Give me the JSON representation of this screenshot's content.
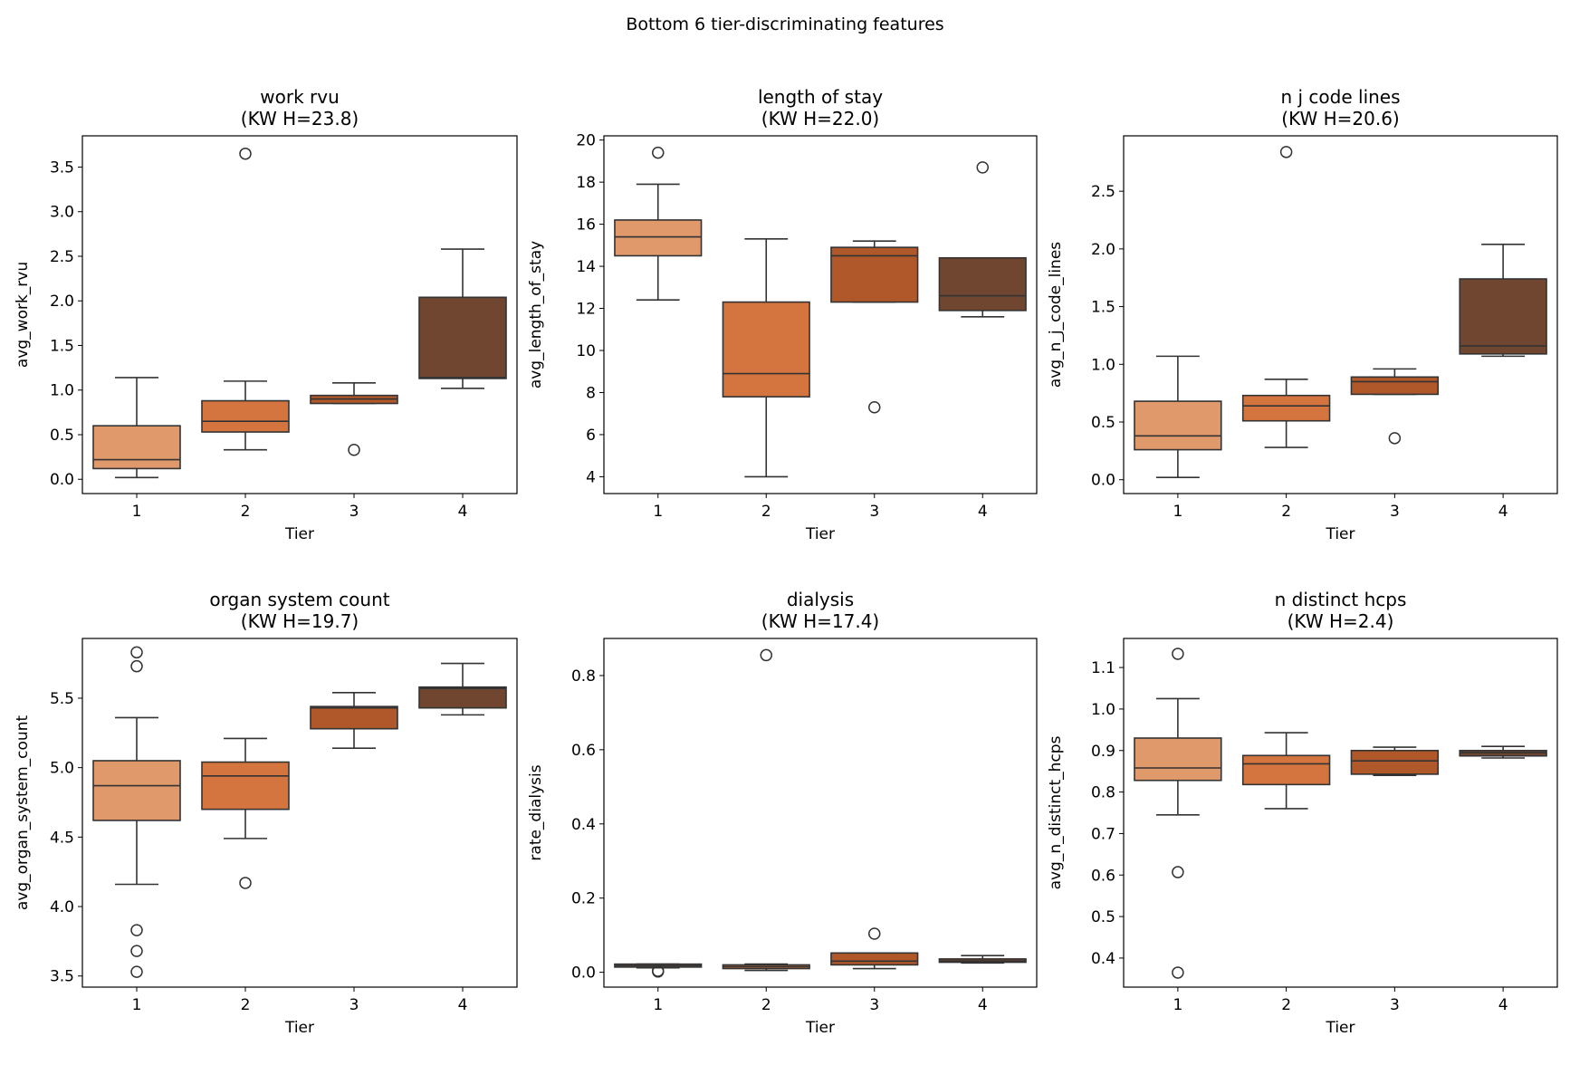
{
  "chart_data": {
    "title": "Bottom 6 tier-discriminating features",
    "colors": [
      "#e0996a",
      "#d4743e",
      "#b0582a",
      "#714630"
    ],
    "panels": [
      {
        "type": "box",
        "title": "work rvu",
        "subtitle": "(KW H=23.8)",
        "xlabel": "Tier",
        "ylabel": "avg_work_rvu",
        "categories": [
          "1",
          "2",
          "3",
          "4"
        ],
        "ylim": [
          -0.16,
          3.85
        ],
        "yticks": [
          "0.0",
          "0.5",
          "1.0",
          "1.5",
          "2.0",
          "2.5",
          "3.0",
          "3.5"
        ],
        "boxes": [
          {
            "whislo": 0.02,
            "q1": 0.12,
            "med": 0.22,
            "q3": 0.6,
            "whishi": 1.14,
            "fliers": []
          },
          {
            "whislo": 0.33,
            "q1": 0.53,
            "med": 0.65,
            "q3": 0.88,
            "whishi": 1.1,
            "fliers": [
              3.65
            ]
          },
          {
            "whislo": 0.85,
            "q1": 0.85,
            "med": 0.9,
            "q3": 0.94,
            "whishi": 1.08,
            "fliers": [
              0.33
            ]
          },
          {
            "whislo": 1.02,
            "q1": 1.13,
            "med": 1.14,
            "q3": 2.04,
            "whishi": 2.58,
            "fliers": []
          }
        ]
      },
      {
        "type": "box",
        "title": "length of stay",
        "subtitle": "(KW H=22.0)",
        "xlabel": "Tier",
        "ylabel": "avg_length_of_stay",
        "categories": [
          "1",
          "2",
          "3",
          "4"
        ],
        "ylim": [
          3.2,
          20.2
        ],
        "yticks": [
          "4",
          "6",
          "8",
          "10",
          "12",
          "14",
          "16",
          "18",
          "20"
        ],
        "boxes": [
          {
            "whislo": 12.4,
            "q1": 14.5,
            "med": 15.4,
            "q3": 16.2,
            "whishi": 17.9,
            "fliers": [
              19.4
            ]
          },
          {
            "whislo": 4.0,
            "q1": 7.8,
            "med": 8.9,
            "q3": 12.3,
            "whishi": 15.3,
            "fliers": []
          },
          {
            "whislo": 12.3,
            "q1": 12.3,
            "med": 14.5,
            "q3": 14.9,
            "whishi": 15.2,
            "fliers": [
              7.3
            ]
          },
          {
            "whislo": 11.6,
            "q1": 11.9,
            "med": 12.6,
            "q3": 14.4,
            "whishi": 14.4,
            "fliers": [
              18.7
            ]
          }
        ]
      },
      {
        "type": "box",
        "title": "n j code lines",
        "subtitle": "(KW H=20.6)",
        "xlabel": "Tier",
        "ylabel": "avg_n_j_code_lines",
        "categories": [
          "1",
          "2",
          "3",
          "4"
        ],
        "ylim": [
          -0.12,
          2.98
        ],
        "yticks": [
          "0.0",
          "0.5",
          "1.0",
          "1.5",
          "2.0",
          "2.5"
        ],
        "boxes": [
          {
            "whislo": 0.02,
            "q1": 0.26,
            "med": 0.38,
            "q3": 0.68,
            "whishi": 1.07,
            "fliers": []
          },
          {
            "whislo": 0.28,
            "q1": 0.51,
            "med": 0.64,
            "q3": 0.73,
            "whishi": 0.87,
            "fliers": [
              2.84
            ]
          },
          {
            "whislo": 0.74,
            "q1": 0.74,
            "med": 0.85,
            "q3": 0.89,
            "whishi": 0.96,
            "fliers": [
              0.36
            ]
          },
          {
            "whislo": 1.07,
            "q1": 1.09,
            "med": 1.16,
            "q3": 1.74,
            "whishi": 2.04,
            "fliers": []
          }
        ]
      },
      {
        "type": "box",
        "title": "organ system count",
        "subtitle": "(KW H=19.7)",
        "xlabel": "Tier",
        "ylabel": "avg_organ_system_count",
        "categories": [
          "1",
          "2",
          "3",
          "4"
        ],
        "ylim": [
          3.42,
          5.93
        ],
        "yticks": [
          "3.5",
          "4.0",
          "4.5",
          "5.0",
          "5.5"
        ],
        "boxes": [
          {
            "whislo": 4.16,
            "q1": 4.62,
            "med": 4.87,
            "q3": 5.05,
            "whishi": 5.36,
            "fliers": [
              5.83,
              5.73,
              3.83,
              3.68,
              3.53
            ]
          },
          {
            "whislo": 4.49,
            "q1": 4.7,
            "med": 4.94,
            "q3": 5.04,
            "whishi": 5.21,
            "fliers": [
              4.17
            ]
          },
          {
            "whislo": 5.14,
            "q1": 5.28,
            "med": 5.43,
            "q3": 5.44,
            "whishi": 5.54,
            "fliers": []
          },
          {
            "whislo": 5.38,
            "q1": 5.43,
            "med": 5.57,
            "q3": 5.58,
            "whishi": 5.75,
            "fliers": []
          }
        ]
      },
      {
        "type": "box",
        "title": "dialysis",
        "subtitle": "(KW H=17.4)",
        "xlabel": "Tier",
        "ylabel": "rate_dialysis",
        "categories": [
          "1",
          "2",
          "3",
          "4"
        ],
        "ylim": [
          -0.04,
          0.9
        ],
        "yticks": [
          "0.0",
          "0.2",
          "0.4",
          "0.6",
          "0.8"
        ],
        "boxes": [
          {
            "whislo": 0.012,
            "q1": 0.014,
            "med": 0.018,
            "q3": 0.022,
            "whishi": 0.022,
            "fliers": [
              0.004,
              0.002
            ]
          },
          {
            "whislo": 0.005,
            "q1": 0.01,
            "med": 0.015,
            "q3": 0.02,
            "whishi": 0.022,
            "fliers": [
              0.855
            ]
          },
          {
            "whislo": 0.01,
            "q1": 0.02,
            "med": 0.03,
            "q3": 0.052,
            "whishi": 0.052,
            "fliers": [
              0.104
            ]
          },
          {
            "whislo": 0.025,
            "q1": 0.027,
            "med": 0.03,
            "q3": 0.036,
            "whishi": 0.045,
            "fliers": []
          }
        ]
      },
      {
        "type": "box",
        "title": "n distinct hcps",
        "subtitle": "(KW H=2.4)",
        "xlabel": "Tier",
        "ylabel": "avg_n_distinct_hcps",
        "categories": [
          "1",
          "2",
          "3",
          "4"
        ],
        "ylim": [
          0.33,
          1.17
        ],
        "yticks": [
          "0.4",
          "0.5",
          "0.6",
          "0.7",
          "0.8",
          "0.9",
          "1.0",
          "1.1"
        ],
        "boxes": [
          {
            "whislo": 0.745,
            "q1": 0.828,
            "med": 0.858,
            "q3": 0.93,
            "whishi": 1.025,
            "fliers": [
              1.133,
              0.607,
              0.365
            ]
          },
          {
            "whislo": 0.76,
            "q1": 0.818,
            "med": 0.868,
            "q3": 0.888,
            "whishi": 0.943,
            "fliers": []
          },
          {
            "whislo": 0.84,
            "q1": 0.843,
            "med": 0.875,
            "q3": 0.9,
            "whishi": 0.908,
            "fliers": []
          },
          {
            "whislo": 0.882,
            "q1": 0.887,
            "med": 0.895,
            "q3": 0.9,
            "whishi": 0.91,
            "fliers": []
          }
        ]
      }
    ]
  }
}
